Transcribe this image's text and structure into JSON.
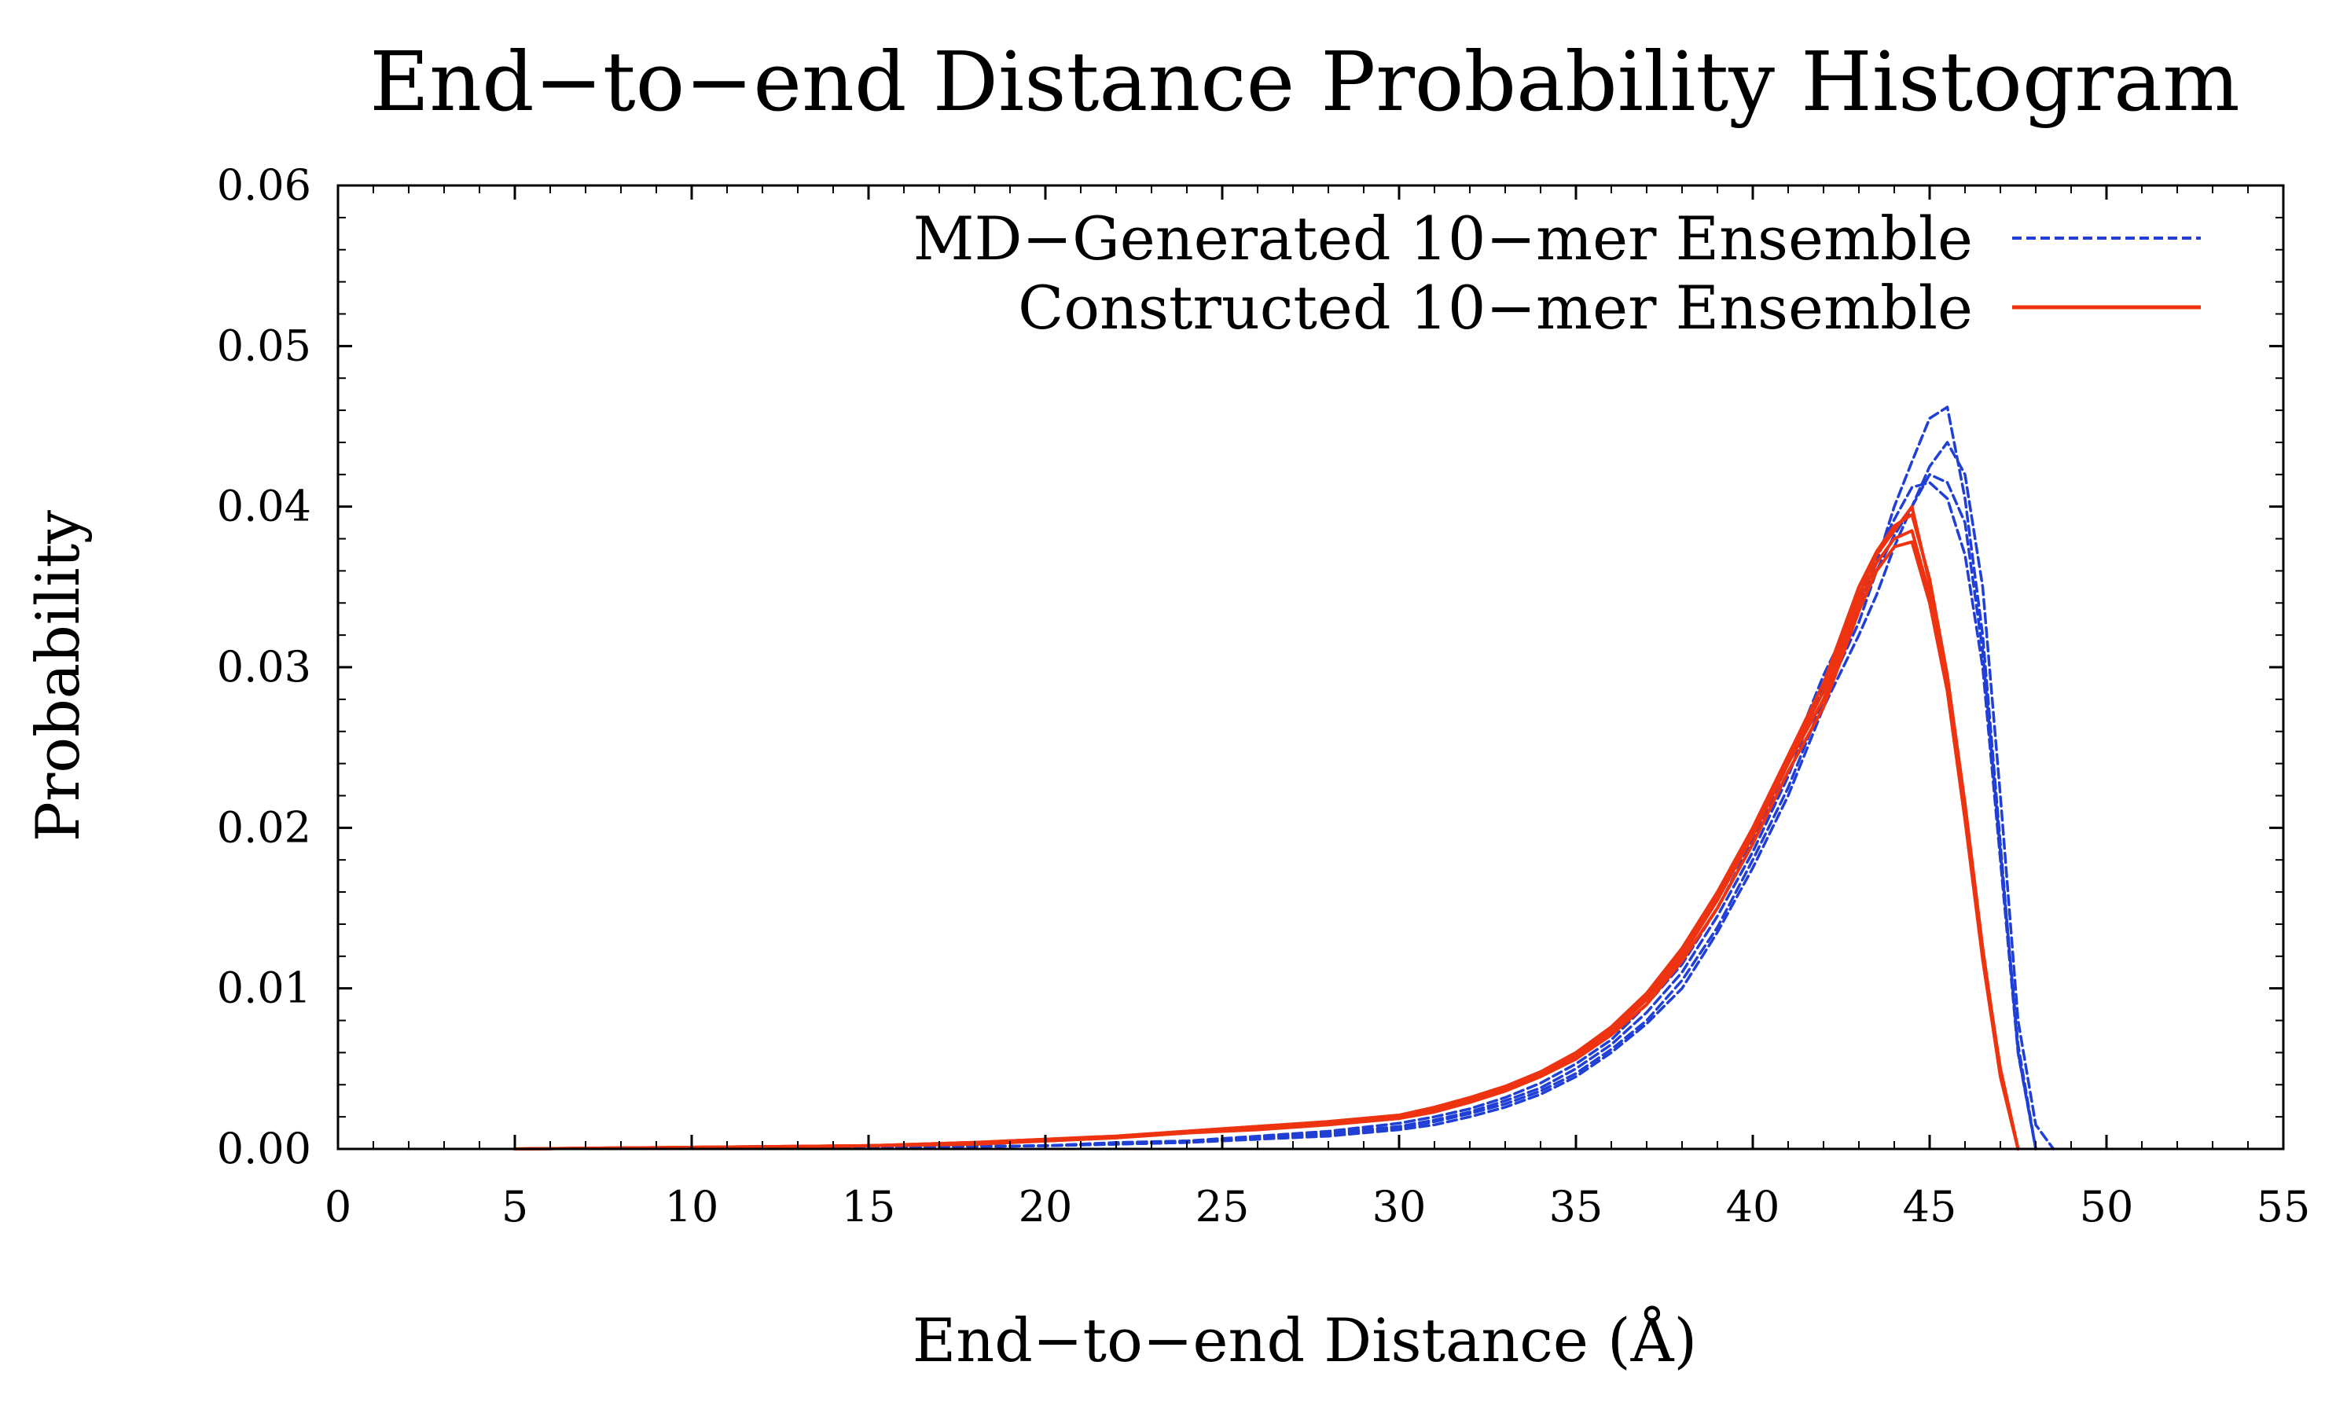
{
  "chart_data": {
    "type": "line",
    "title": "End−to−end Distance Probability Histogram",
    "xlabel": "End−to−end Distance (Å)",
    "ylabel": "Probability",
    "xlim": [
      0,
      55
    ],
    "ylim": [
      0,
      0.06
    ],
    "xticks": [
      0,
      5,
      10,
      15,
      20,
      25,
      30,
      35,
      40,
      45,
      50,
      55
    ],
    "xtick_labels": [
      "0",
      "5",
      "10",
      "15",
      "20",
      "25",
      "30",
      "35",
      "40",
      "45",
      "50",
      "55"
    ],
    "yticks": [
      0,
      0.01,
      0.02,
      0.03,
      0.04,
      0.05,
      0.06
    ],
    "ytick_labels": [
      "0.00",
      "0.01",
      "0.02",
      "0.03",
      "0.04",
      "0.05",
      "0.06"
    ],
    "grid": false,
    "legend_position": "top-right",
    "legend": [
      {
        "label": "MD−Generated 10−mer Ensemble",
        "color": "#1f3fd6",
        "dash": "dashed"
      },
      {
        "label": "Constructed 10−mer Ensemble",
        "color": "#ee3311",
        "dash": "solid"
      }
    ],
    "series": [
      {
        "name": "MD−Generated 10−mer Ensemble",
        "group": 0,
        "x": [
          5,
          15,
          20,
          22,
          24,
          26,
          28,
          30,
          31,
          32,
          33,
          34,
          35,
          36,
          37,
          38,
          39,
          40,
          41,
          42,
          43,
          43.5,
          44,
          44.5,
          45,
          45.5,
          46,
          46.5,
          47,
          47.5,
          48,
          48.5
        ],
        "y": [
          0,
          0.0001,
          0.0002,
          0.0003,
          0.0004,
          0.0006,
          0.0008,
          0.0012,
          0.0015,
          0.002,
          0.0026,
          0.0034,
          0.0045,
          0.006,
          0.0078,
          0.01,
          0.0135,
          0.0175,
          0.022,
          0.0275,
          0.032,
          0.0345,
          0.0375,
          0.04,
          0.0425,
          0.044,
          0.042,
          0.035,
          0.022,
          0.008,
          0.0015,
          0
        ]
      },
      {
        "name": "MD−Generated 10−mer Ensemble",
        "group": 0,
        "x": [
          5,
          15,
          20,
          22,
          24,
          26,
          28,
          30,
          31,
          32,
          33,
          34,
          35,
          36,
          37,
          38,
          39,
          40,
          41,
          42,
          43,
          43.5,
          44,
          44.5,
          45,
          45.5,
          46,
          46.5,
          47,
          47.5,
          48
        ],
        "y": [
          0,
          0.0001,
          0.0002,
          0.0003,
          0.0005,
          0.0007,
          0.001,
          0.0014,
          0.0018,
          0.0023,
          0.003,
          0.0038,
          0.005,
          0.0065,
          0.0085,
          0.011,
          0.0145,
          0.0185,
          0.0232,
          0.029,
          0.0335,
          0.0365,
          0.04,
          0.0428,
          0.0455,
          0.0462,
          0.0405,
          0.032,
          0.019,
          0.006,
          0
        ]
      },
      {
        "name": "MD−Generated 10−mer Ensemble",
        "group": 0,
        "x": [
          5,
          15,
          20,
          22,
          24,
          26,
          28,
          30,
          31,
          32,
          33,
          34,
          35,
          36,
          37,
          38,
          39,
          40,
          41,
          42,
          43,
          43.5,
          44,
          44.5,
          45,
          45.5,
          46,
          46.5,
          47,
          47.5,
          48
        ],
        "y": [
          0,
          0.0001,
          0.0002,
          0.0004,
          0.0005,
          0.0008,
          0.0011,
          0.0016,
          0.002,
          0.0025,
          0.0032,
          0.0041,
          0.0053,
          0.0068,
          0.009,
          0.0115,
          0.015,
          0.0192,
          0.024,
          0.0295,
          0.034,
          0.037,
          0.0392,
          0.0412,
          0.0415,
          0.0405,
          0.037,
          0.03,
          0.018,
          0.006,
          0
        ]
      },
      {
        "name": "MD−Generated 10−mer Ensemble",
        "group": 0,
        "x": [
          5,
          15,
          20,
          22,
          24,
          26,
          28,
          30,
          31,
          32,
          33,
          34,
          35,
          36,
          37,
          38,
          39,
          40,
          41,
          42,
          43,
          43.5,
          44,
          44.5,
          45,
          45.5,
          46,
          46.5,
          47,
          47.5,
          48
        ],
        "y": [
          0,
          0.0001,
          0.0002,
          0.0003,
          0.0004,
          0.0007,
          0.0009,
          0.0013,
          0.0017,
          0.0022,
          0.0028,
          0.0036,
          0.0047,
          0.0062,
          0.008,
          0.0105,
          0.0138,
          0.018,
          0.0225,
          0.028,
          0.0328,
          0.036,
          0.0382,
          0.04,
          0.042,
          0.0415,
          0.039,
          0.031,
          0.0185,
          0.0065,
          0
        ]
      },
      {
        "name": "Constructed 10−mer Ensemble",
        "group": 1,
        "x": [
          5,
          10,
          15,
          18,
          20,
          22,
          24,
          26,
          28,
          30,
          31,
          32,
          33,
          34,
          35,
          36,
          37,
          38,
          39,
          40,
          41,
          42,
          42.5,
          43,
          43.5,
          44,
          44.5,
          45,
          45.5,
          46,
          46.5,
          47,
          47.5
        ],
        "y": [
          0,
          0.0001,
          0.0002,
          0.0003,
          0.0005,
          0.0007,
          0.001,
          0.0013,
          0.0016,
          0.002,
          0.0024,
          0.003,
          0.0037,
          0.0046,
          0.0058,
          0.0073,
          0.0093,
          0.012,
          0.0155,
          0.0195,
          0.024,
          0.028,
          0.031,
          0.034,
          0.0365,
          0.038,
          0.0385,
          0.0345,
          0.029,
          0.021,
          0.012,
          0.005,
          0
        ]
      },
      {
        "name": "Constructed 10−mer Ensemble",
        "group": 1,
        "x": [
          5,
          10,
          15,
          18,
          20,
          22,
          24,
          26,
          28,
          30,
          31,
          32,
          33,
          34,
          35,
          36,
          37,
          38,
          39,
          40,
          41,
          42,
          42.5,
          43,
          43.5,
          44,
          44.5,
          45,
          45.5,
          46,
          46.5,
          47,
          47.5
        ],
        "y": [
          0,
          0.0001,
          0.0002,
          0.0004,
          0.0006,
          0.0008,
          0.0011,
          0.0014,
          0.0017,
          0.0021,
          0.0026,
          0.0032,
          0.0039,
          0.0048,
          0.006,
          0.0076,
          0.0097,
          0.0125,
          0.016,
          0.02,
          0.0245,
          0.029,
          0.032,
          0.035,
          0.0372,
          0.0388,
          0.0395,
          0.0355,
          0.0295,
          0.0215,
          0.0125,
          0.0048,
          0
        ]
      },
      {
        "name": "Constructed 10−mer Ensemble",
        "group": 1,
        "x": [
          5,
          10,
          15,
          18,
          20,
          22,
          24,
          26,
          28,
          30,
          31,
          32,
          33,
          34,
          35,
          36,
          37,
          38,
          39,
          40,
          41,
          42,
          42.5,
          43,
          43.5,
          44,
          44.5,
          45,
          45.5,
          46,
          46.5,
          47,
          47.5
        ],
        "y": [
          0,
          0.0001,
          0.0002,
          0.0003,
          0.0005,
          0.0007,
          0.001,
          0.0012,
          0.0015,
          0.0019,
          0.0023,
          0.0029,
          0.0036,
          0.0045,
          0.0056,
          0.0071,
          0.009,
          0.0117,
          0.015,
          0.019,
          0.0235,
          0.0275,
          0.0305,
          0.0335,
          0.036,
          0.0375,
          0.0378,
          0.034,
          0.0285,
          0.0205,
          0.0118,
          0.0045,
          0
        ]
      },
      {
        "name": "Constructed 10−mer Ensemble",
        "group": 1,
        "x": [
          5,
          10,
          15,
          18,
          20,
          22,
          24,
          26,
          28,
          30,
          31,
          32,
          33,
          34,
          35,
          36,
          37,
          38,
          39,
          40,
          41,
          42,
          42.5,
          43,
          43.5,
          44,
          44.5,
          45,
          45.5,
          46,
          46.5,
          47,
          47.5
        ],
        "y": [
          0,
          0.0001,
          0.0002,
          0.0004,
          0.0006,
          0.0008,
          0.0011,
          0.0014,
          0.0017,
          0.0021,
          0.0025,
          0.0031,
          0.0038,
          0.0047,
          0.0059,
          0.0074,
          0.0095,
          0.0122,
          0.0157,
          0.0198,
          0.0242,
          0.0285,
          0.0315,
          0.0345,
          0.037,
          0.0385,
          0.04,
          0.0352,
          0.0292,
          0.0212,
          0.0122,
          0.005,
          0
        ]
      }
    ]
  }
}
